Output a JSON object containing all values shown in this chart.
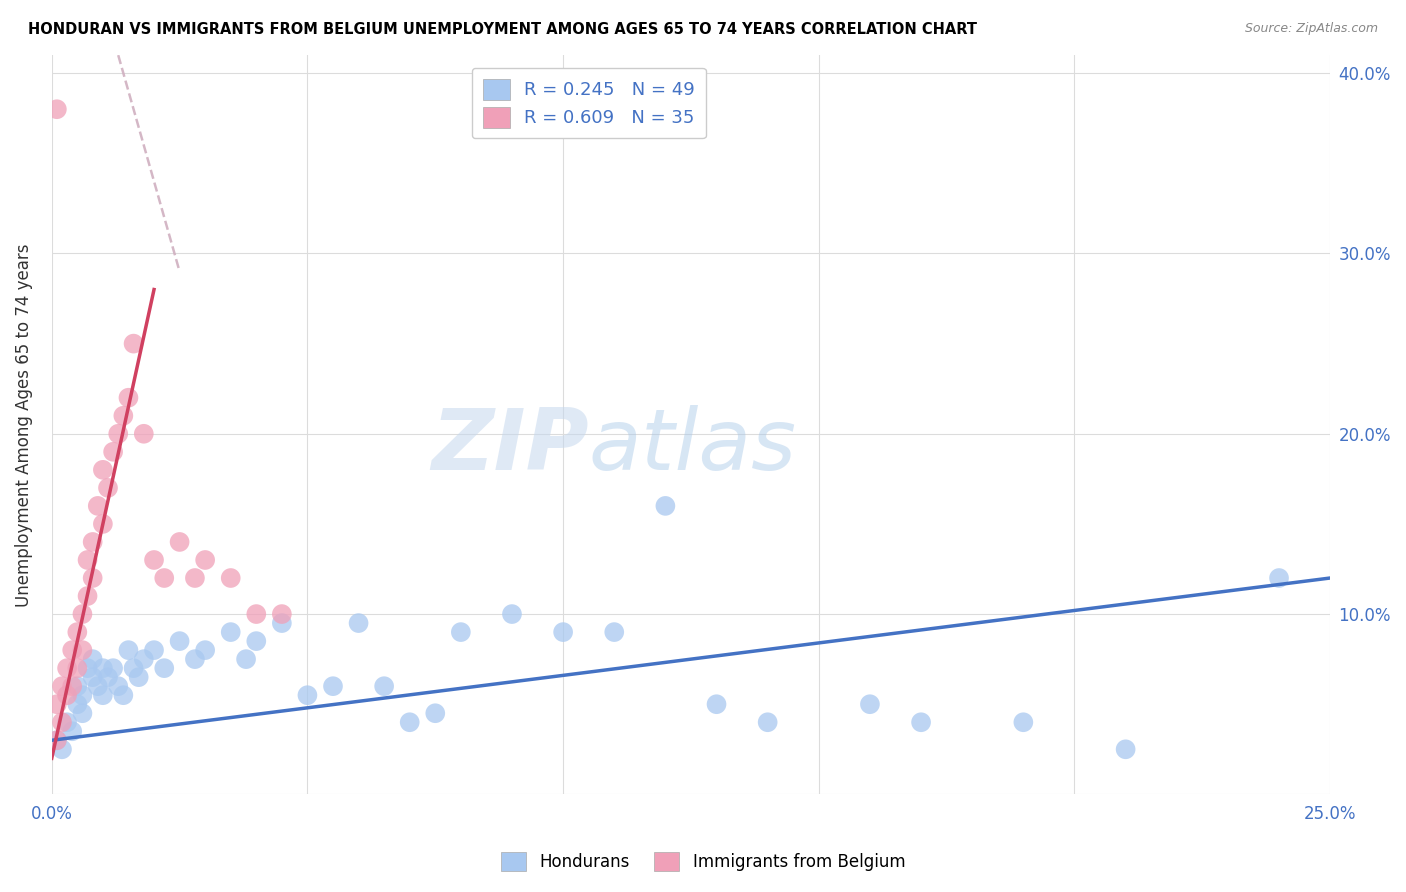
{
  "title": "HONDURAN VS IMMIGRANTS FROM BELGIUM UNEMPLOYMENT AMONG AGES 65 TO 74 YEARS CORRELATION CHART",
  "source": "Source: ZipAtlas.com",
  "ylabel": "Unemployment Among Ages 65 to 74 years",
  "xlim": [
    0.0,
    0.25
  ],
  "ylim": [
    0.0,
    0.41
  ],
  "color_blue": "#A8C8F0",
  "color_pink": "#F0A0B8",
  "color_line_blue": "#4472C4",
  "color_line_pink": "#D04060",
  "color_line_dashed": "#D0B0C0",
  "watermark_zip": "ZIP",
  "watermark_atlas": "atlas",
  "legend_label1": "Hondurans",
  "legend_label2": "Immigrants from Belgium",
  "legend_R1": "R = 0.245",
  "legend_N1": "N = 49",
  "legend_R2": "R = 0.609",
  "legend_N2": "N = 35",
  "hondurans_x": [
    0.001,
    0.002,
    0.003,
    0.004,
    0.005,
    0.005,
    0.006,
    0.006,
    0.007,
    0.008,
    0.008,
    0.009,
    0.01,
    0.01,
    0.011,
    0.012,
    0.013,
    0.014,
    0.015,
    0.016,
    0.017,
    0.018,
    0.02,
    0.022,
    0.025,
    0.028,
    0.03,
    0.035,
    0.038,
    0.04,
    0.045,
    0.05,
    0.055,
    0.06,
    0.065,
    0.07,
    0.075,
    0.08,
    0.09,
    0.1,
    0.11,
    0.12,
    0.13,
    0.14,
    0.16,
    0.17,
    0.19,
    0.21,
    0.24
  ],
  "hondurans_y": [
    0.03,
    0.025,
    0.04,
    0.035,
    0.05,
    0.06,
    0.045,
    0.055,
    0.07,
    0.065,
    0.075,
    0.06,
    0.055,
    0.07,
    0.065,
    0.07,
    0.06,
    0.055,
    0.08,
    0.07,
    0.065,
    0.075,
    0.08,
    0.07,
    0.085,
    0.075,
    0.08,
    0.09,
    0.075,
    0.085,
    0.095,
    0.055,
    0.06,
    0.095,
    0.06,
    0.04,
    0.045,
    0.09,
    0.1,
    0.09,
    0.09,
    0.16,
    0.05,
    0.04,
    0.05,
    0.04,
    0.04,
    0.025,
    0.12
  ],
  "belgium_x": [
    0.001,
    0.001,
    0.002,
    0.002,
    0.003,
    0.003,
    0.004,
    0.004,
    0.005,
    0.005,
    0.006,
    0.006,
    0.007,
    0.007,
    0.008,
    0.008,
    0.009,
    0.01,
    0.01,
    0.011,
    0.012,
    0.013,
    0.014,
    0.015,
    0.016,
    0.018,
    0.02,
    0.022,
    0.025,
    0.028,
    0.03,
    0.035,
    0.04,
    0.045,
    0.001
  ],
  "belgium_y": [
    0.03,
    0.05,
    0.04,
    0.06,
    0.055,
    0.07,
    0.06,
    0.08,
    0.07,
    0.09,
    0.08,
    0.1,
    0.11,
    0.13,
    0.12,
    0.14,
    0.16,
    0.15,
    0.18,
    0.17,
    0.19,
    0.2,
    0.21,
    0.22,
    0.25,
    0.2,
    0.13,
    0.12,
    0.14,
    0.12,
    0.13,
    0.12,
    0.1,
    0.1,
    0.38
  ],
  "blue_line_x": [
    0.0,
    0.25
  ],
  "blue_line_y": [
    0.03,
    0.12
  ],
  "pink_line_x": [
    0.0,
    0.02
  ],
  "pink_line_y": [
    0.02,
    0.28
  ],
  "dash_line_x": [
    0.013,
    0.025
  ],
  "dash_line_y": [
    0.41,
    0.29
  ]
}
